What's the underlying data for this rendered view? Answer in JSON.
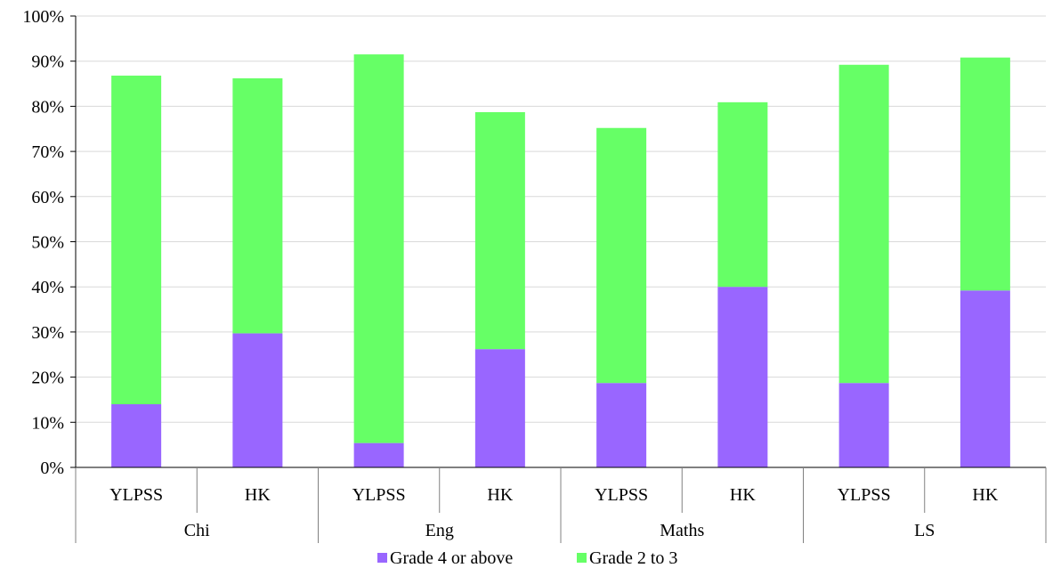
{
  "chart_data": {
    "type": "bar",
    "stacked": true,
    "groups": [
      "Chi",
      "Eng",
      "Maths",
      "LS"
    ],
    "subcategories": [
      "YLPSS",
      "HK"
    ],
    "categories": [
      "YLPSS",
      "HK",
      "YLPSS",
      "HK",
      "YLPSS",
      "HK",
      "YLPSS",
      "HK"
    ],
    "series": [
      {
        "name": "Grade 4 or above",
        "color": "#9966ff",
        "values": [
          14.0,
          29.7,
          5.4,
          26.2,
          18.7,
          40.0,
          18.7,
          39.2
        ]
      },
      {
        "name": "Grade 2 to 3",
        "color": "#66ff66",
        "values": [
          72.8,
          56.5,
          86.1,
          52.5,
          56.5,
          40.9,
          70.5,
          51.6
        ]
      }
    ],
    "ylim": [
      0,
      100
    ],
    "ytick_step": 10,
    "ytick_format": "percent",
    "grid": true,
    "legend": "bottom",
    "title": "",
    "xlabel": "",
    "ylabel": ""
  }
}
